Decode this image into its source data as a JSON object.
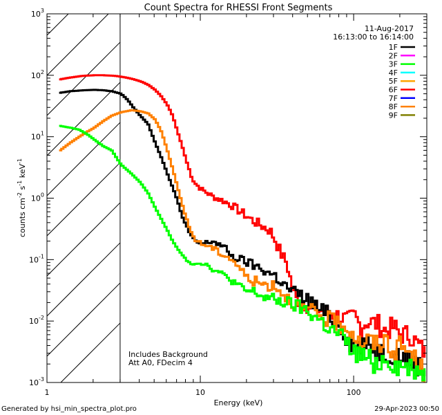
{
  "chart_data": {
    "type": "line",
    "title": "Count Spectra for RHESSI Front Segments",
    "xlabel": "Energy (keV)",
    "ylabel_main": "counts cm",
    "ylabel_exp1": "-2",
    "ylabel_mid": " s",
    "ylabel_exp2": "-1",
    "ylabel_end": " keV",
    "ylabel_exp3": "-1",
    "x_scale": "log",
    "y_scale": "log",
    "xlim": [
      1,
      300
    ],
    "ylim": [
      0.001,
      1000
    ],
    "x_ticks": [
      {
        "value": 1,
        "label": "1"
      },
      {
        "value": 10,
        "label": "10"
      },
      {
        "value": 100,
        "label": "100"
      }
    ],
    "y_ticks": [
      {
        "value": 0.001,
        "base": "10",
        "exp": "-3"
      },
      {
        "value": 0.01,
        "base": "10",
        "exp": "-2"
      },
      {
        "value": 0.1,
        "base": "10",
        "exp": "-1"
      },
      {
        "value": 1,
        "base": "10",
        "exp": "0"
      },
      {
        "value": 10,
        "base": "10",
        "exp": "1"
      },
      {
        "value": 100,
        "base": "10",
        "exp": "2"
      },
      {
        "value": 1000,
        "base": "10",
        "exp": "3"
      }
    ],
    "hatch_region": {
      "x_from": 1,
      "x_to": 3
    },
    "date": "11-Aug-2017",
    "time_range": "16:13:00 to 16:14:00",
    "legend_position": "top-right",
    "legend": [
      {
        "name": "1F",
        "color": "#000000"
      },
      {
        "name": "2F",
        "color": "#ff00ff"
      },
      {
        "name": "3F",
        "color": "#00ff00"
      },
      {
        "name": "4F",
        "color": "#00ffff"
      },
      {
        "name": "5F",
        "color": "#ffa500"
      },
      {
        "name": "6F",
        "color": "#ff0000"
      },
      {
        "name": "7F",
        "color": "#0000ff"
      },
      {
        "name": "8F",
        "color": "#ff8000"
      },
      {
        "name": "9F",
        "color": "#808000"
      }
    ],
    "annotations": [
      "Includes Background",
      "Att A0, FDecim 4"
    ],
    "series": [
      {
        "name": "6F",
        "color": "#ff0000",
        "points": [
          [
            1.2,
            86
          ],
          [
            1.4,
            92
          ],
          [
            1.7,
            98
          ],
          [
            2.0,
            100
          ],
          [
            2.3,
            100
          ],
          [
            2.7,
            98
          ],
          [
            3.0,
            95
          ],
          [
            3.5,
            88
          ],
          [
            4.0,
            80
          ],
          [
            4.5,
            70
          ],
          [
            5.0,
            58
          ],
          [
            5.5,
            45
          ],
          [
            6.0,
            33
          ],
          [
            6.5,
            22
          ],
          [
            7.0,
            12
          ],
          [
            7.5,
            7
          ],
          [
            8.0,
            4
          ],
          [
            8.5,
            2.5
          ],
          [
            9.0,
            1.8
          ],
          [
            10,
            1.4
          ],
          [
            11,
            1.2
          ],
          [
            12,
            1.05
          ],
          [
            14,
            0.9
          ],
          [
            16,
            0.75
          ],
          [
            18,
            0.6
          ],
          [
            20,
            0.5
          ],
          [
            22,
            0.42
          ],
          [
            25,
            0.35
          ],
          [
            28,
            0.3
          ],
          [
            30,
            0.22
          ],
          [
            32,
            0.15
          ],
          [
            34,
            0.11
          ],
          [
            36,
            0.09
          ],
          [
            38,
            0.05
          ],
          [
            40,
            0.03
          ],
          [
            42,
            0.022
          ],
          [
            46,
            0.02
          ],
          [
            50,
            0.017
          ],
          [
            55,
            0.016
          ],
          [
            60,
            0.015
          ],
          [
            70,
            0.013
          ],
          [
            80,
            0.012
          ],
          [
            90,
            0.01
          ],
          [
            100,
            0.012
          ],
          [
            110,
            0.008
          ],
          [
            120,
            0.01
          ],
          [
            140,
            0.009
          ],
          [
            160,
            0.007
          ],
          [
            180,
            0.008
          ],
          [
            200,
            0.006
          ],
          [
            230,
            0.006
          ],
          [
            260,
            0.004
          ],
          [
            290,
            0.003
          ]
        ]
      },
      {
        "name": "1F",
        "color": "#000000",
        "points": [
          [
            1.2,
            52
          ],
          [
            1.4,
            55
          ],
          [
            1.7,
            57
          ],
          [
            2.0,
            58
          ],
          [
            2.3,
            57
          ],
          [
            2.6,
            55
          ],
          [
            3.0,
            50
          ],
          [
            3.3,
            40
          ],
          [
            3.6,
            30
          ],
          [
            4.0,
            22
          ],
          [
            4.5,
            16
          ],
          [
            5.0,
            8
          ],
          [
            5.5,
            4.5
          ],
          [
            6.0,
            2.5
          ],
          [
            6.5,
            1.5
          ],
          [
            7.0,
            0.9
          ],
          [
            7.5,
            0.5
          ],
          [
            8.0,
            0.35
          ],
          [
            8.5,
            0.25
          ],
          [
            9.0,
            0.2
          ],
          [
            10,
            0.18
          ],
          [
            11,
            0.19
          ],
          [
            12,
            0.2
          ],
          [
            14,
            0.16
          ],
          [
            16,
            0.11
          ],
          [
            18,
            0.1
          ],
          [
            20,
            0.09
          ],
          [
            22,
            0.08
          ],
          [
            25,
            0.07
          ],
          [
            28,
            0.06
          ],
          [
            30,
            0.055
          ],
          [
            33,
            0.045
          ],
          [
            36,
            0.035
          ],
          [
            40,
            0.03
          ],
          [
            45,
            0.025
          ],
          [
            50,
            0.022
          ],
          [
            60,
            0.015
          ],
          [
            70,
            0.012
          ],
          [
            80,
            0.009
          ],
          [
            90,
            0.005
          ],
          [
            100,
            0.004
          ],
          [
            120,
            0.004
          ],
          [
            140,
            0.0035
          ],
          [
            160,
            0.003
          ],
          [
            180,
            0.003
          ],
          [
            200,
            0.0028
          ],
          [
            250,
            0.002
          ],
          [
            290,
            0.0016
          ]
        ]
      },
      {
        "name": "8F",
        "color": "#ff8000",
        "points": [
          [
            1.2,
            6
          ],
          [
            1.4,
            8
          ],
          [
            1.6,
            10
          ],
          [
            1.8,
            12
          ],
          [
            2.0,
            14
          ],
          [
            2.3,
            18
          ],
          [
            2.6,
            22
          ],
          [
            3.0,
            25
          ],
          [
            3.5,
            27
          ],
          [
            4.0,
            26
          ],
          [
            4.5,
            24
          ],
          [
            5.0,
            19
          ],
          [
            5.5,
            12
          ],
          [
            6.0,
            6
          ],
          [
            6.5,
            3
          ],
          [
            7.0,
            1.5
          ],
          [
            7.5,
            0.8
          ],
          [
            8.0,
            0.45
          ],
          [
            8.5,
            0.3
          ],
          [
            9.0,
            0.22
          ],
          [
            10,
            0.18
          ],
          [
            11,
            0.17
          ],
          [
            12,
            0.15
          ],
          [
            14,
            0.12
          ],
          [
            16,
            0.1
          ],
          [
            18,
            0.07
          ],
          [
            20,
            0.05
          ],
          [
            22,
            0.045
          ],
          [
            25,
            0.04
          ],
          [
            28,
            0.038
          ],
          [
            30,
            0.04
          ],
          [
            33,
            0.03
          ],
          [
            36,
            0.025
          ],
          [
            40,
            0.02
          ],
          [
            45,
            0.015
          ],
          [
            50,
            0.015
          ],
          [
            60,
            0.012
          ],
          [
            70,
            0.01
          ],
          [
            80,
            0.009
          ],
          [
            90,
            0.008
          ],
          [
            100,
            0.006
          ],
          [
            110,
            0.004
          ],
          [
            120,
            0.005
          ],
          [
            140,
            0.004
          ],
          [
            160,
            0.005
          ],
          [
            180,
            0.003
          ],
          [
            200,
            0.004
          ],
          [
            230,
            0.003
          ],
          [
            260,
            0.002
          ],
          [
            290,
            0.0012
          ]
        ]
      },
      {
        "name": "3F",
        "color": "#00ff00",
        "points": [
          [
            1.2,
            15
          ],
          [
            1.4,
            14
          ],
          [
            1.6,
            13
          ],
          [
            1.8,
            11
          ],
          [
            2.0,
            9
          ],
          [
            2.3,
            7
          ],
          [
            2.6,
            6
          ],
          [
            3.0,
            3.5
          ],
          [
            3.5,
            2.5
          ],
          [
            4.0,
            1.8
          ],
          [
            4.5,
            1.2
          ],
          [
            5.0,
            0.7
          ],
          [
            5.5,
            0.45
          ],
          [
            6.0,
            0.3
          ],
          [
            6.5,
            0.2
          ],
          [
            7.0,
            0.15
          ],
          [
            7.5,
            0.12
          ],
          [
            8.0,
            0.1
          ],
          [
            8.5,
            0.09
          ],
          [
            9.0,
            0.085
          ],
          [
            10,
            0.09
          ],
          [
            11,
            0.08
          ],
          [
            12,
            0.07
          ],
          [
            14,
            0.055
          ],
          [
            16,
            0.045
          ],
          [
            18,
            0.035
          ],
          [
            20,
            0.03
          ],
          [
            22,
            0.03
          ],
          [
            25,
            0.025
          ],
          [
            28,
            0.023
          ],
          [
            30,
            0.022
          ],
          [
            35,
            0.02
          ],
          [
            40,
            0.018
          ],
          [
            45,
            0.016
          ],
          [
            50,
            0.014
          ],
          [
            60,
            0.01
          ],
          [
            70,
            0.007
          ],
          [
            80,
            0.006
          ],
          [
            90,
            0.004
          ],
          [
            100,
            0.003
          ],
          [
            120,
            0.0025
          ],
          [
            140,
            0.002
          ],
          [
            160,
            0.0025
          ],
          [
            180,
            0.002
          ],
          [
            200,
            0.0018
          ],
          [
            250,
            0.0017
          ],
          [
            290,
            0.0014
          ]
        ]
      }
    ]
  },
  "footer": {
    "generated": "Generated by hsi_min_spectra_plot.pro",
    "timestamp": "29-Apr-2023 00:50"
  }
}
